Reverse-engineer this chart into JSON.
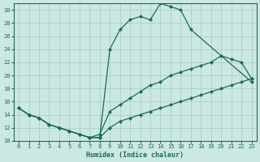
{
  "xlabel": "Humidex (Indice chaleur)",
  "xlim": [
    -0.5,
    23.5
  ],
  "ylim": [
    10,
    31
  ],
  "yticks": [
    10,
    12,
    14,
    16,
    18,
    20,
    22,
    24,
    26,
    28,
    30
  ],
  "xticks": [
    0,
    1,
    2,
    3,
    4,
    5,
    6,
    7,
    8,
    9,
    10,
    11,
    12,
    13,
    14,
    15,
    16,
    17,
    18,
    19,
    20,
    21,
    22,
    23
  ],
  "bg_color": "#cce8e2",
  "line_color": "#1a6b5a",
  "grid_color": "#aacfc8",
  "line1_x": [
    0,
    1,
    2,
    3,
    4,
    5,
    6,
    7,
    8,
    9,
    10,
    11,
    12,
    13,
    14,
    15,
    16,
    17,
    23
  ],
  "line1_y": [
    15,
    14,
    13.5,
    12.5,
    12,
    11.5,
    11,
    10.5,
    10.5,
    24,
    27,
    28.5,
    29,
    28.5,
    31,
    30.5,
    30,
    27,
    19
  ],
  "line2_x": [
    0,
    1,
    2,
    3,
    4,
    5,
    6,
    7,
    8,
    9,
    10,
    11,
    12,
    13,
    14,
    15,
    16,
    17,
    18,
    19,
    20,
    21,
    22,
    23
  ],
  "line2_y": [
    15,
    14,
    13.5,
    12.5,
    12,
    11.5,
    11,
    10.5,
    11,
    14.5,
    15.5,
    16.5,
    17.5,
    18.5,
    19,
    20,
    20.5,
    21,
    21.5,
    22,
    23,
    22.5,
    22,
    19.5
  ],
  "line3_x": [
    0,
    1,
    2,
    3,
    4,
    5,
    6,
    7,
    8,
    9,
    10,
    11,
    12,
    13,
    14,
    15,
    16,
    17,
    18,
    19,
    20,
    21,
    22,
    23
  ],
  "line3_y": [
    15,
    14,
    13.5,
    12.5,
    12,
    11.5,
    11,
    10.5,
    10.5,
    12,
    13,
    13.5,
    14,
    14.5,
    15,
    15.5,
    16,
    16.5,
    17,
    17.5,
    18,
    18.5,
    19,
    19.5
  ]
}
